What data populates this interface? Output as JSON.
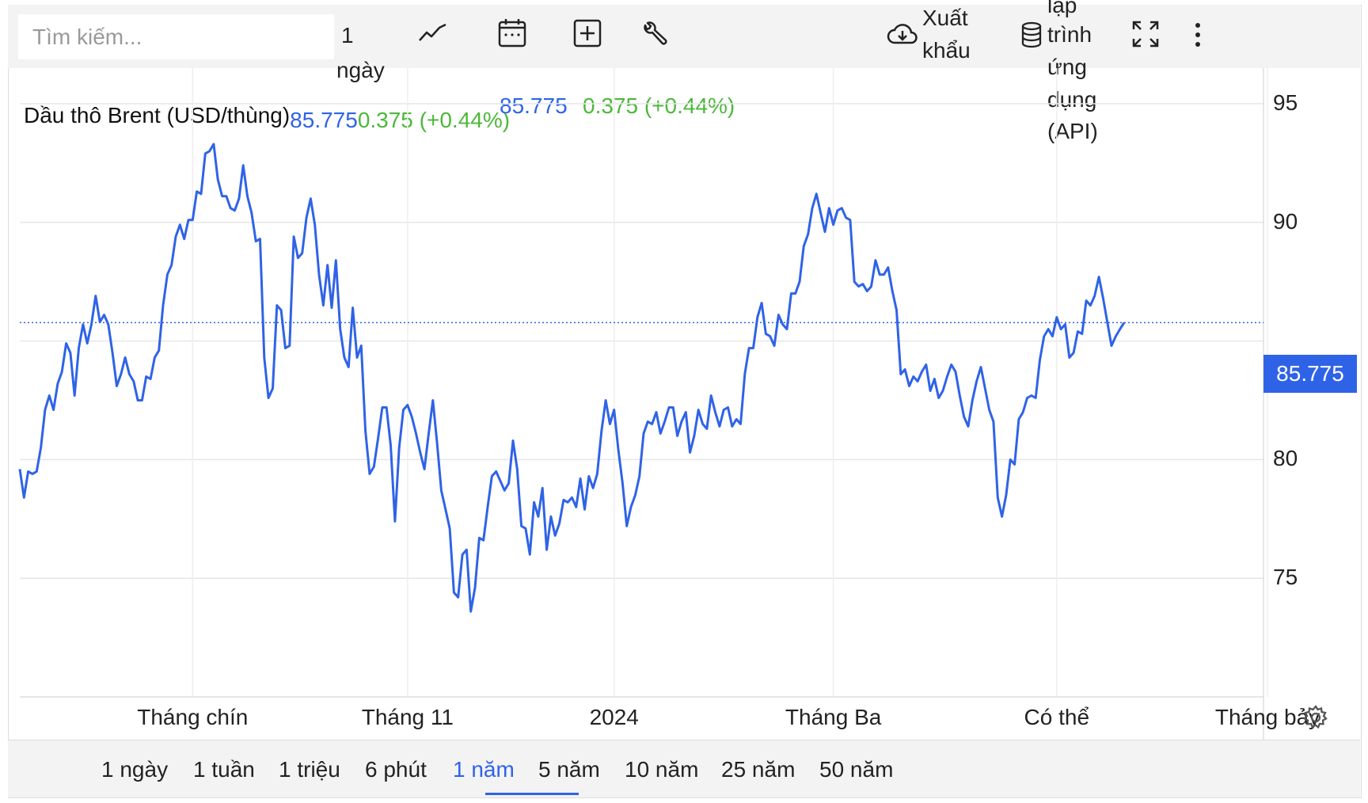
{
  "toolbar": {
    "search_placeholder": "Tìm kiếm...",
    "interval_line1": "1",
    "interval_line2": "ngày",
    "export_line1": "Xuất",
    "export_line2": "khẩu",
    "api_line1": "lập",
    "api_line2": "trình",
    "api_line3": "ứng",
    "api_line4": "dụng",
    "api_line5": "(API)",
    "icons": [
      "line-chart-icon",
      "calendar-icon",
      "add-icon",
      "wrench-icon",
      "cloud-download-icon",
      "database-icon",
      "fullscreen-icon",
      "more-icon"
    ]
  },
  "header": {
    "symbol": "Dầu thô Brent (USD/thùng)",
    "price_inline": "85.775",
    "change_inline": "0.375 (+0.44%)",
    "price": "85.775",
    "change": "0.375 (+0.44%)"
  },
  "colors": {
    "line": "#2f63e7",
    "up": "#4cb83a",
    "accent": "#2f63e7",
    "grid": "#e6e6e6"
  },
  "bottom": {
    "ranges": [
      "1 ngày",
      "1 tuần",
      "1 triệu",
      "6 phút",
      "1 năm",
      "5 năm",
      "10 năm",
      "25 năm",
      "50 năm"
    ],
    "active_index": 4
  },
  "chart_data": {
    "type": "line",
    "series": [],
    "last_value_label": "85.775",
    "y_ticks": [
      "95",
      "90",
      "80",
      "75"
    ],
    "y_tick_values": [
      95,
      90,
      80,
      75
    ],
    "ylim": [
      70,
      96.5
    ],
    "x_ticks": [
      "Tháng chín",
      "Tháng 11",
      "2024",
      "Tháng Ba",
      "Có thể",
      "Tháng bảy"
    ],
    "x_tick_index": [
      41,
      92,
      141,
      193,
      246,
      296
    ],
    "values": [
      79.6,
      78.4,
      79.5,
      79.4,
      79.5,
      80.5,
      82.1,
      82.7,
      82.1,
      83.2,
      83.7,
      84.9,
      84.5,
      82.7,
      84.7,
      85.7,
      84.9,
      85.7,
      86.9,
      85.8,
      86.1,
      85.7,
      84.5,
      83.1,
      83.6,
      84.3,
      83.6,
      83.3,
      82.5,
      82.5,
      83.5,
      83.4,
      84.3,
      84.6,
      86.5,
      87.8,
      88.2,
      89.4,
      89.9,
      89.3,
      90.1,
      90.1,
      91.3,
      91.2,
      92.9,
      93.0,
      93.3,
      91.8,
      91.1,
      91.1,
      90.6,
      90.5,
      91.0,
      92.4,
      91.1,
      90.4,
      89.2,
      89.3,
      84.3,
      82.6,
      83.0,
      86.5,
      86.3,
      84.7,
      84.8,
      89.4,
      88.5,
      88.7,
      90.2,
      91.0,
      89.9,
      87.8,
      86.5,
      88.2,
      86.4,
      88.4,
      85.5,
      84.3,
      83.9,
      86.4,
      84.3,
      84.8,
      81.2,
      79.4,
      79.7,
      80.9,
      82.2,
      82.2,
      80.6,
      77.4,
      80.5,
      82.1,
      82.3,
      81.8,
      81.1,
      80.3,
      79.6,
      81.1,
      82.5,
      80.7,
      78.7,
      77.9,
      77.1,
      74.4,
      74.2,
      76.0,
      76.2,
      73.6,
      74.6,
      76.7,
      76.6,
      78.0,
      79.3,
      79.5,
      79.1,
      78.7,
      79.0,
      80.8,
      79.6,
      77.2,
      77.1,
      76.0,
      78.2,
      77.6,
      78.8,
      76.2,
      77.6,
      76.8,
      77.3,
      78.3,
      78.2,
      78.4,
      78.0,
      79.2,
      77.9,
      79.3,
      78.8,
      79.4,
      81.2,
      82.5,
      81.5,
      82.1,
      80.4,
      79.0,
      77.2,
      78.0,
      78.5,
      79.3,
      81.1,
      81.6,
      81.5,
      82.0,
      81.1,
      81.6,
      82.2,
      82.2,
      81.0,
      81.6,
      82.0,
      80.3,
      81.0,
      82.1,
      81.5,
      81.3,
      82.7,
      82.0,
      81.4,
      82.1,
      82.2,
      81.4,
      81.7,
      81.5,
      83.6,
      84.7,
      84.7,
      86.0,
      86.6,
      85.3,
      85.2,
      84.8,
      86.1,
      85.7,
      85.5,
      87.0,
      87.0,
      87.5,
      89.0,
      89.5,
      90.6,
      91.2,
      90.4,
      89.6,
      90.6,
      89.9,
      90.5,
      90.6,
      90.2,
      90.1,
      87.5,
      87.3,
      87.4,
      87.1,
      87.3,
      88.4,
      87.8,
      87.8,
      88.1,
      87.1,
      86.3,
      83.6,
      83.8,
      83.1,
      83.5,
      83.3,
      83.7,
      84.0,
      82.9,
      83.4,
      82.6,
      82.9,
      83.5,
      84.0,
      83.7,
      82.7,
      81.8,
      81.4,
      82.5,
      83.3,
      83.9,
      83.0,
      82.1,
      81.6,
      78.4,
      77.6,
      78.5,
      80.0,
      79.8,
      81.7,
      82.0,
      82.6,
      82.7,
      82.6,
      84.2,
      85.2,
      85.5,
      85.2,
      86.0,
      85.5,
      85.7,
      84.3,
      84.5,
      85.4,
      85.3,
      86.7,
      86.5,
      86.9,
      87.7,
      86.8,
      85.8,
      84.8,
      85.2,
      85.5,
      85.775
    ]
  }
}
